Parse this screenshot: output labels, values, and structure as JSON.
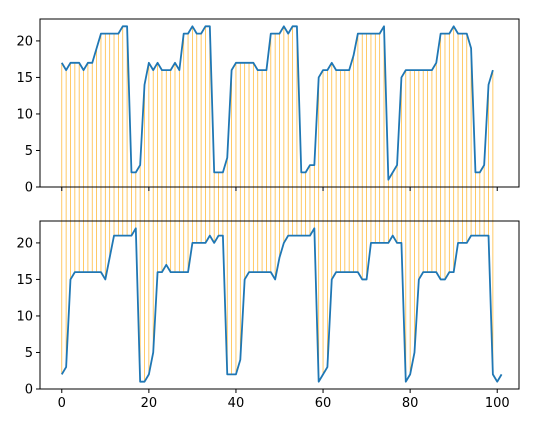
{
  "colors": {
    "line": "#1f77b4",
    "connection": "#ffa500",
    "axes": "#000000",
    "background": "#ffffff"
  },
  "chart_data": [
    {
      "type": "line",
      "panel": "top",
      "title": "",
      "xlabel": "",
      "ylabel": "",
      "xlim": [
        -5,
        105
      ],
      "ylim": [
        0,
        23
      ],
      "grid": false,
      "x_ticks_labeled": false,
      "yticks": [
        0,
        5,
        10,
        15,
        20
      ],
      "series": [
        {
          "values": [
            17,
            16,
            17,
            17,
            17,
            16,
            17,
            17,
            19,
            21,
            21,
            21,
            21,
            21,
            22,
            22,
            2,
            2,
            3,
            14,
            17,
            16,
            17,
            16,
            16,
            16,
            17,
            16,
            21,
            21,
            22,
            21,
            21,
            22,
            22,
            2,
            2,
            2,
            4,
            16,
            17,
            17,
            17,
            17,
            17,
            16,
            16,
            16,
            21,
            21,
            21,
            22,
            21,
            22,
            22,
            2,
            2,
            3,
            3,
            15,
            16,
            16,
            17,
            16,
            16,
            16,
            16,
            18,
            21,
            21,
            21,
            21,
            21,
            21,
            22,
            1,
            2,
            3,
            15,
            16,
            16,
            16,
            16,
            16,
            16,
            16,
            17,
            21,
            21,
            21,
            22,
            21,
            21,
            21,
            19,
            2,
            2,
            3,
            14,
            16
          ]
        }
      ]
    },
    {
      "type": "line",
      "panel": "bottom",
      "title": "",
      "xlabel": "",
      "ylabel": "",
      "xlim": [
        -5,
        105
      ],
      "ylim": [
        0,
        23
      ],
      "grid": false,
      "xticks": [
        0,
        20,
        40,
        60,
        80,
        100
      ],
      "yticks": [
        0,
        5,
        10,
        15,
        20
      ],
      "series": [
        {
          "values": [
            2,
            3,
            15,
            16,
            16,
            16,
            16,
            16,
            16,
            16,
            15,
            18,
            21,
            21,
            21,
            21,
            21,
            22,
            1,
            1,
            2,
            5,
            16,
            16,
            17,
            16,
            16,
            16,
            16,
            16,
            20,
            20,
            20,
            20,
            21,
            20,
            21,
            21,
            2,
            2,
            2,
            4,
            15,
            16,
            16,
            16,
            16,
            16,
            16,
            15,
            18,
            20,
            21,
            21,
            21,
            21,
            21,
            21,
            22,
            1,
            2,
            3,
            15,
            16,
            16,
            16,
            16,
            16,
            16,
            15,
            15,
            20,
            20,
            20,
            20,
            20,
            21,
            20,
            20,
            1,
            2,
            5,
            15,
            16,
            16,
            16,
            16,
            15,
            15,
            16,
            16,
            20,
            20,
            20,
            21,
            21,
            21,
            21,
            21,
            2,
            1,
            2
          ]
        }
      ]
    }
  ]
}
